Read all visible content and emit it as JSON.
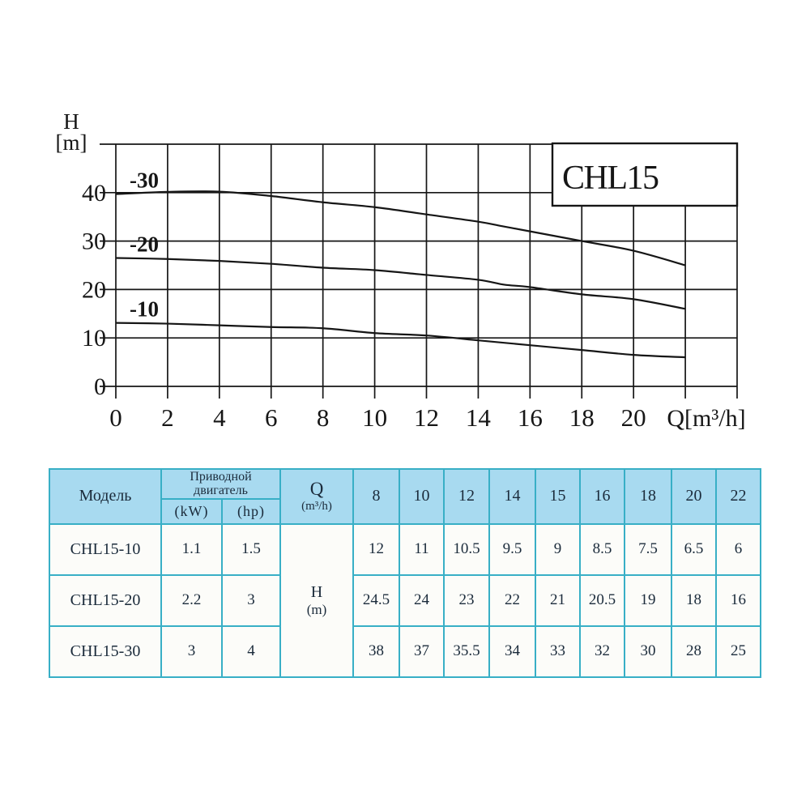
{
  "chart_data": {
    "type": "line",
    "title": "CHL15",
    "xlabel": "Q[m³/h]",
    "ylabel_line1": "H",
    "ylabel_line2": "[m]",
    "xlim": [
      0,
      24
    ],
    "ylim": [
      0,
      50
    ],
    "x_tick_step": 2,
    "y_tick_step": 10,
    "x_tick_labels": [
      "0",
      "2",
      "4",
      "6",
      "8",
      "10",
      "12",
      "14",
      "16",
      "18",
      "20"
    ],
    "y_tick_labels": [
      "0",
      "10",
      "20",
      "30",
      "40"
    ],
    "grid": true,
    "series": [
      {
        "name": "-30",
        "x": [
          0,
          2,
          4,
          6,
          8,
          10,
          12,
          14,
          15,
          16,
          18,
          20,
          22
        ],
        "y": [
          39.7,
          40.15,
          40.2,
          39.3,
          38,
          37,
          35.5,
          34,
          33,
          32,
          30,
          28,
          25
        ]
      },
      {
        "name": "-20",
        "x": [
          0,
          2,
          4,
          6,
          8,
          10,
          12,
          14,
          15,
          16,
          18,
          20,
          22
        ],
        "y": [
          26.5,
          26.3,
          25.9,
          25.3,
          24.5,
          24,
          23,
          22,
          21,
          20.5,
          19,
          18,
          16
        ]
      },
      {
        "name": "-10",
        "x": [
          0,
          2,
          4,
          6,
          8,
          10,
          12,
          14,
          15,
          16,
          18,
          20,
          22
        ],
        "y": [
          13.1,
          12.95,
          12.6,
          12.25,
          12,
          11,
          10.5,
          9.5,
          9,
          8.5,
          7.5,
          6.5,
          6
        ]
      }
    ]
  },
  "table": {
    "headers": {
      "model": "Модель",
      "motor_line1": "Приводной",
      "motor_line2": "двигатель",
      "kw": "(kW)",
      "hp": "(hp)",
      "q_line1": "Q",
      "q_line2": "(m³/h)",
      "flow": [
        "8",
        "10",
        "12",
        "14",
        "15",
        "16",
        "18",
        "20",
        "22"
      ],
      "h_line1": "H",
      "h_line2": "(m)"
    },
    "rows": [
      {
        "model": "CHL15-10",
        "kw": "1.1",
        "hp": "1.5",
        "values": [
          "12",
          "11",
          "10.5",
          "9.5",
          "9",
          "8.5",
          "7.5",
          "6.5",
          "6"
        ]
      },
      {
        "model": "CHL15-20",
        "kw": "2.2",
        "hp": "3",
        "values": [
          "24.5",
          "24",
          "23",
          "22",
          "21",
          "20.5",
          "19",
          "18",
          "16"
        ]
      },
      {
        "model": "CHL15-30",
        "kw": "3",
        "hp": "4",
        "values": [
          "38",
          "37",
          "35.5",
          "34",
          "33",
          "32",
          "30",
          "28",
          "25"
        ]
      }
    ]
  },
  "colors": {
    "table_border": "#38afc6",
    "header_bg": "#a8daf0",
    "body_bg": "#fcfcf9",
    "table_text": "#1b2b3b",
    "chart_ink": "#161616"
  }
}
